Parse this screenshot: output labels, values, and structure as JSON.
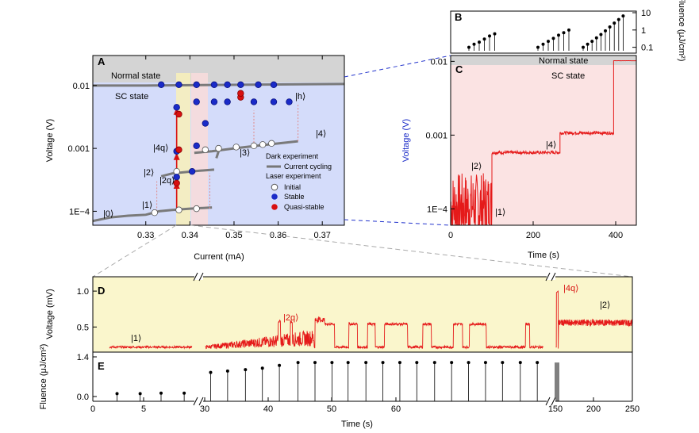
{
  "chart_data": [
    {
      "panel": "A",
      "type": "scatter",
      "xlabel": "Current (mA)",
      "ylabel": "Voltage (V)",
      "xlim": [
        0.318,
        0.375
      ],
      "ylim": [
        6e-05,
        0.03
      ],
      "yscale": "log",
      "xticks": [
        "0.33",
        "0.34",
        "0.35",
        "0.36",
        "0.37"
      ],
      "yticks": [
        "1E−4",
        "0.001",
        "0.01"
      ],
      "region_labels": {
        "normal": "Normal state",
        "sc": "SC state"
      },
      "state_labels": [
        "|0⟩",
        "|1⟩",
        "|2⟩",
        "|2q⟩",
        "|3⟩",
        "|4q⟩",
        "|4⟩",
        "|h⟩"
      ],
      "legend": {
        "dark_title": "Dark experiment",
        "current_cycling": "Current cycling",
        "laser_title": "Laser experiment",
        "initial": "Initial",
        "stable": "Stable",
        "quasi": "Quasi-stable"
      },
      "series": [
        {
          "name": "Current cycling",
          "points": [
            [
              0.318,
              7e-05
            ],
            [
              0.322,
              8e-05
            ],
            [
              0.326,
              8.5e-05
            ],
            [
              0.33,
              8.8e-05
            ],
            [
              0.331,
              9.2e-05
            ],
            [
              0.333,
              0.0001
            ],
            [
              0.336,
              0.000105
            ],
            [
              0.34,
              0.00011
            ],
            [
              0.345,
              0.000115
            ],
            [
              0.3335,
              0.00036
            ],
            [
              0.336,
              0.0004
            ],
            [
              0.339,
              0.00042
            ],
            [
              0.342,
              0.00044
            ],
            [
              0.3455,
              0.00046
            ],
            [
              0.346,
              0.0007
            ],
            [
              0.3465,
              0.0009
            ],
            [
              0.341,
              0.00085
            ],
            [
              0.345,
              0.0009
            ],
            [
              0.35,
              0.001
            ],
            [
              0.355,
              0.0011
            ],
            [
              0.36,
              0.0012
            ],
            [
              0.3645,
              0.0013
            ],
            [
              0.318,
              0.01
            ],
            [
              0.33,
              0.01
            ],
            [
              0.345,
              0.0102
            ],
            [
              0.36,
              0.0104
            ],
            [
              0.375,
              0.0106
            ]
          ]
        },
        {
          "name": "Initial",
          "points": [
            [
              0.332,
              9.5e-05
            ],
            [
              0.3375,
              0.000105
            ],
            [
              0.3415,
              0.00011
            ],
            [
              0.337,
              0.00043
            ],
            [
              0.3435,
              0.00095
            ],
            [
              0.3465,
              0.001
            ],
            [
              0.3505,
              0.00105
            ],
            [
              0.3545,
              0.0011
            ],
            [
              0.3565,
              0.00115
            ],
            [
              0.3585,
              0.0012
            ]
          ]
        },
        {
          "name": "Stable",
          "points": [
            [
              0.3335,
              0.0103
            ],
            [
              0.3375,
              0.0103
            ],
            [
              0.3415,
              0.0103
            ],
            [
              0.3455,
              0.0103
            ],
            [
              0.3485,
              0.0103
            ],
            [
              0.3515,
              0.0103
            ],
            [
              0.3555,
              0.0103
            ],
            [
              0.359,
              0.0103
            ],
            [
              0.337,
              0.0045
            ],
            [
              0.3415,
              0.0055
            ],
            [
              0.3455,
              0.0055
            ],
            [
              0.3485,
              0.0055
            ],
            [
              0.3545,
              0.0055
            ],
            [
              0.359,
              0.0055
            ],
            [
              0.3625,
              0.0055
            ],
            [
              0.3435,
              0.0025
            ],
            [
              0.337,
              0.0009
            ],
            [
              0.3415,
              0.0011
            ],
            [
              0.3405,
              0.00043
            ],
            [
              0.337,
              0.00035
            ]
          ]
        },
        {
          "name": "Quasi-stable",
          "points": [
            [
              0.3515,
              0.0065
            ],
            [
              0.3515,
              0.0075
            ],
            [
              0.3375,
              0.0035
            ],
            [
              0.3375,
              0.00095
            ],
            [
              0.337,
              0.00028
            ]
          ]
        }
      ]
    },
    {
      "panel": "B",
      "type": "scatter",
      "ylabel": "Fluence (μJ/cm²)",
      "yscale": "log",
      "yticks": [
        "0.1",
        "1",
        "10"
      ],
      "groups": [
        [
          0.1,
          0.15,
          0.2,
          0.3,
          0.45,
          0.6
        ],
        [
          0.1,
          0.15,
          0.22,
          0.33,
          0.5,
          0.7,
          1.0
        ],
        [
          0.1,
          0.15,
          0.22,
          0.35,
          0.55,
          0.9,
          1.5,
          2.5,
          4.0,
          6.5
        ]
      ]
    },
    {
      "panel": "C",
      "type": "line",
      "xlabel": "Time (s)",
      "ylabel": "Voltage (V)",
      "xlim": [
        0,
        450
      ],
      "ylim": [
        6e-05,
        0.012
      ],
      "yscale": "log",
      "xticks": [
        "0",
        "200",
        "400"
      ],
      "yticks": [
        "1E−4",
        "0.001",
        "0.01"
      ],
      "region_labels": {
        "normal": "Normal state",
        "sc": "SC state"
      },
      "state_labels": [
        "|1⟩",
        "|2⟩",
        "|4⟩"
      ],
      "segments": [
        {
          "x0": 0,
          "x1": 100,
          "y": 0.00011
        },
        {
          "x0": 100,
          "x1": 265,
          "y": 0.00058
        },
        {
          "x0": 265,
          "x1": 395,
          "y": 0.00107
        },
        {
          "x0": 395,
          "x1": 450,
          "y": 0.0102
        }
      ]
    },
    {
      "panel": "D",
      "type": "line",
      "ylabel": "Voltage (mV)",
      "ylim": [
        0.15,
        1.2
      ],
      "yticks": [
        "0.5",
        "1.0"
      ],
      "state_labels": [
        "|1⟩",
        "|2q⟩",
        "|4q⟩",
        "|2⟩"
      ]
    },
    {
      "panel": "E",
      "type": "scatter",
      "xlabel": "Time (s)",
      "ylabel": "Fluence (μJ/cm²)",
      "ylim": [
        -0.1,
        1.4
      ],
      "yticks": [
        "0.0",
        "1.4"
      ],
      "xticks": [
        "0",
        "5",
        "30",
        "40",
        "50",
        "60",
        "150",
        "200",
        "250"
      ],
      "pulses_seg1": [
        [
          2.2,
          0.1
        ],
        [
          4.3,
          0.1
        ],
        [
          6.2,
          0.12
        ],
        [
          8.3,
          0.12
        ]
      ],
      "pulses_seg2": [
        [
          30.2,
          0.85
        ],
        [
          32.2,
          0.9
        ],
        [
          34.3,
          0.95
        ],
        [
          36.3,
          1.0
        ],
        [
          38.3,
          1.1
        ],
        [
          40.5,
          1.2
        ],
        [
          42.5,
          1.2
        ],
        [
          44.5,
          1.2
        ],
        [
          46.4,
          1.2
        ],
        [
          48.5,
          1.2
        ],
        [
          50.5,
          1.2
        ],
        [
          52.5,
          1.2
        ],
        [
          54.5,
          1.2
        ],
        [
          56.6,
          1.2
        ],
        [
          58.6,
          1.2
        ],
        [
          60.6,
          1.2
        ],
        [
          62.6,
          1.2
        ],
        [
          64.6,
          1.2
        ],
        [
          66.7,
          1.2
        ],
        [
          68.7,
          1.2
        ]
      ],
      "pulses_seg3": [
        [
          150,
          1.2
        ],
        [
          151,
          1.2
        ],
        [
          152,
          1.2
        ]
      ]
    }
  ]
}
